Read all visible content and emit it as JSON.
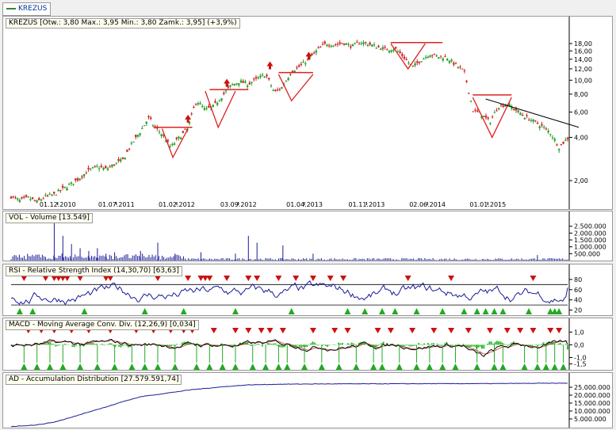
{
  "tab": {
    "label": "KREZUS"
  },
  "colors": {
    "up": "#2aa12a",
    "down": "#cc2a2a",
    "line": "#1a1a9a",
    "marker_red": "#cc1111",
    "marker_green": "#22aa22",
    "trend": "#dd2222"
  },
  "chart_data": [
    {
      "type": "candlestick",
      "title": "KREZUS [Otw.: 3,80  Max.: 3,95  Min.: 3,80  Zamk.: 3,95] (+3,9%)",
      "scale": "log",
      "ylim": [
        1.35,
        21.5
      ],
      "y_ticks": [
        "18,00",
        "16,00",
        "14,00",
        "12,00",
        "10,00",
        "8,00",
        "6,00",
        "4,00",
        "2,00"
      ],
      "y_tick_values": [
        18,
        16,
        14,
        12,
        10,
        8,
        6,
        4,
        2
      ],
      "x_tick_labels": [
        "01.12.2010",
        "01.07.2011",
        "01.02.2012",
        "03.09.2012",
        "01.04.2013",
        "01.11.2013",
        "02.06.2014",
        "01.01.2015"
      ],
      "close_path": [
        [
          0.0,
          1.55
        ],
        [
          0.02,
          1.45
        ],
        [
          0.04,
          1.52
        ],
        [
          0.06,
          1.42
        ],
        [
          0.08,
          1.55
        ],
        [
          0.1,
          1.6
        ],
        [
          0.12,
          1.75
        ],
        [
          0.14,
          1.9
        ],
        [
          0.16,
          2.1
        ],
        [
          0.18,
          2.35
        ],
        [
          0.2,
          2.5
        ],
        [
          0.22,
          2.4
        ],
        [
          0.24,
          2.6
        ],
        [
          0.26,
          2.8
        ],
        [
          0.28,
          3.6
        ],
        [
          0.3,
          4.4
        ],
        [
          0.32,
          5.5
        ],
        [
          0.33,
          4.8
        ],
        [
          0.35,
          4.2
        ],
        [
          0.37,
          3.4
        ],
        [
          0.39,
          4.0
        ],
        [
          0.41,
          4.6
        ],
        [
          0.43,
          7.2
        ],
        [
          0.45,
          6.2
        ],
        [
          0.47,
          6.6
        ],
        [
          0.49,
          7.8
        ],
        [
          0.51,
          9.2
        ],
        [
          0.53,
          9.8
        ],
        [
          0.55,
          9.4
        ],
        [
          0.57,
          10.2
        ],
        [
          0.59,
          11.0
        ],
        [
          0.61,
          8.2
        ],
        [
          0.63,
          9.0
        ],
        [
          0.65,
          11.5
        ],
        [
          0.67,
          12.5
        ],
        [
          0.69,
          14.0
        ],
        [
          0.71,
          16.2
        ],
        [
          0.73,
          18.0
        ],
        [
          0.75,
          17.6
        ],
        [
          0.77,
          18.2
        ],
        [
          0.79,
          17.2
        ],
        [
          0.81,
          18.4
        ],
        [
          0.83,
          17.8
        ],
        [
          0.85,
          17.0
        ],
        [
          0.87,
          16.4
        ],
        [
          0.89,
          16.6
        ],
        [
          0.91,
          14.5
        ],
        [
          0.93,
          12.3
        ],
        [
          0.95,
          13.8
        ],
        [
          0.97,
          15.2
        ],
        [
          0.99,
          14.6
        ],
        [
          1.01,
          14.4
        ],
        [
          1.03,
          12.8
        ],
        [
          1.05,
          11.5
        ],
        [
          1.06,
          8.6
        ],
        [
          1.07,
          6.2
        ],
        [
          1.09,
          5.8
        ],
        [
          1.11,
          5.1
        ],
        [
          1.13,
          6.6
        ],
        [
          1.15,
          6.8
        ],
        [
          1.17,
          6.2
        ],
        [
          1.19,
          5.6
        ],
        [
          1.21,
          5.2
        ],
        [
          1.23,
          4.8
        ],
        [
          1.25,
          4.3
        ],
        [
          1.27,
          3.4
        ],
        [
          1.29,
          3.95
        ]
      ],
      "annotations": {
        "resistance_lines": [
          [
            0.33,
            0.42,
            4.7
          ],
          [
            0.46,
            0.55,
            8.6
          ],
          [
            0.62,
            0.7,
            11.3
          ],
          [
            0.88,
            1.0,
            18.3
          ],
          [
            1.07,
            1.16,
            7.9
          ]
        ],
        "up_arrows": [
          [
            0.41,
            5.4
          ],
          [
            0.5,
            9.6
          ],
          [
            0.6,
            12.7
          ],
          [
            0.69,
            14.8
          ]
        ],
        "downtrend": [
          [
            1.1,
            7.4
          ],
          [
            1.29,
            4.7
          ]
        ]
      }
    },
    {
      "type": "bar",
      "title": "VOL - Volume [13.549]",
      "y_ticks": [
        "2.500.000",
        "2.000.000",
        "1.500.000",
        "1.000.000",
        "500.000"
      ],
      "y_tick_values": [
        2500000,
        2000000,
        1500000,
        1000000,
        500000
      ],
      "ylim": [
        0,
        3000000
      ],
      "spikes": [
        [
          0.1,
          2800000
        ],
        [
          0.12,
          1800000
        ],
        [
          0.14,
          1200000
        ],
        [
          0.16,
          900000
        ],
        [
          0.18,
          700000
        ],
        [
          0.2,
          900000
        ],
        [
          0.22,
          500000
        ],
        [
          0.24,
          600000
        ],
        [
          0.3,
          700000
        ],
        [
          0.34,
          1300000
        ],
        [
          0.38,
          500000
        ],
        [
          0.44,
          600000
        ],
        [
          0.52,
          500000
        ],
        [
          0.55,
          1800000
        ],
        [
          0.57,
          1300000
        ],
        [
          0.63,
          1100000
        ],
        [
          0.7,
          500000
        ],
        [
          1.22,
          400000
        ]
      ]
    },
    {
      "type": "line",
      "title": "RSI - Relative Strength Index (14,30,70) [63,63]",
      "y_ticks": [
        "80",
        "60",
        "40",
        "20"
      ],
      "y_tick_values": [
        80,
        60,
        40,
        20
      ],
      "ylim": [
        10,
        100
      ],
      "levels": [
        70,
        30
      ],
      "value": 63.63
    },
    {
      "type": "line",
      "title": "MACD - Moving Average Conv. Div. (12,26,9) [0,034]",
      "y_ticks": [
        "1,0",
        "0,0",
        "-1,0",
        "-1,5"
      ],
      "y_tick_values": [
        1.0,
        0.0,
        -1.0,
        -1.5
      ],
      "ylim": [
        -1.9,
        1.7
      ],
      "value": 0.034
    },
    {
      "type": "line",
      "title": "AD - Accumulation Distribution [27.579.591,74]",
      "y_ticks": [
        "25.000.000",
        "20.000.000",
        "15.000.000",
        "10.000.000",
        "5.000.000"
      ],
      "y_tick_values": [
        25000000,
        20000000,
        15000000,
        10000000,
        5000000
      ],
      "ylim": [
        0,
        29000000
      ],
      "ad_path": [
        [
          0.0,
          200000
        ],
        [
          0.06,
          1200000
        ],
        [
          0.1,
          3000000
        ],
        [
          0.14,
          6000000
        ],
        [
          0.18,
          9500000
        ],
        [
          0.22,
          12500000
        ],
        [
          0.26,
          16000000
        ],
        [
          0.3,
          19000000
        ],
        [
          0.34,
          20500000
        ],
        [
          0.38,
          22000000
        ],
        [
          0.42,
          23500000
        ],
        [
          0.46,
          24500000
        ],
        [
          0.5,
          25500000
        ],
        [
          0.55,
          26500000
        ],
        [
          0.62,
          26900000
        ],
        [
          0.72,
          27100000
        ],
        [
          0.9,
          27200000
        ],
        [
          1.1,
          27300000
        ],
        [
          1.29,
          27580000
        ]
      ]
    }
  ]
}
